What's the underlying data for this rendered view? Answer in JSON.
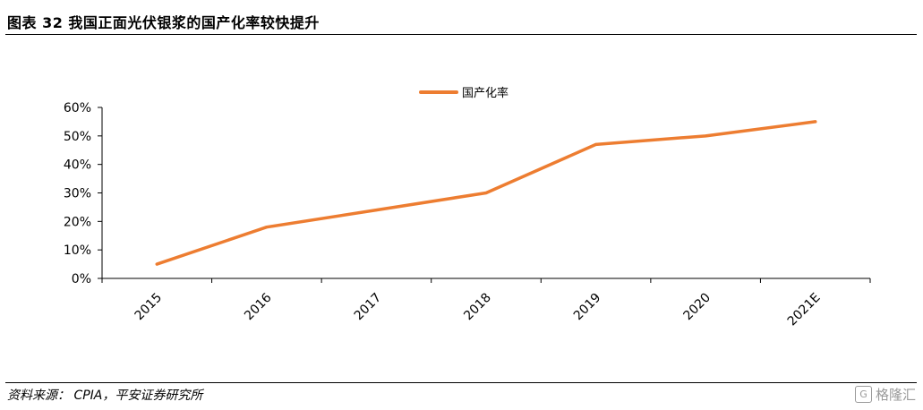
{
  "figure": {
    "title": "图表 32   我国正面光伏银浆的国产化率较快提升",
    "source": "资料来源：  CPIA，平安证券研究所",
    "watermark": "格隆汇"
  },
  "chart_data": {
    "type": "line",
    "categories": [
      "2015",
      "2016",
      "2017",
      "2018",
      "2019",
      "2020",
      "2021E"
    ],
    "series": [
      {
        "name": "国产化率",
        "values": [
          5,
          18,
          24,
          30,
          47,
          50,
          55
        ],
        "color": "#ED7D31"
      }
    ],
    "y_ticks": [
      "0%",
      "10%",
      "20%",
      "30%",
      "40%",
      "50%",
      "60%"
    ],
    "ylim": [
      0,
      60
    ],
    "y_unit": "%",
    "grid": false,
    "legend_position": "top-center"
  }
}
